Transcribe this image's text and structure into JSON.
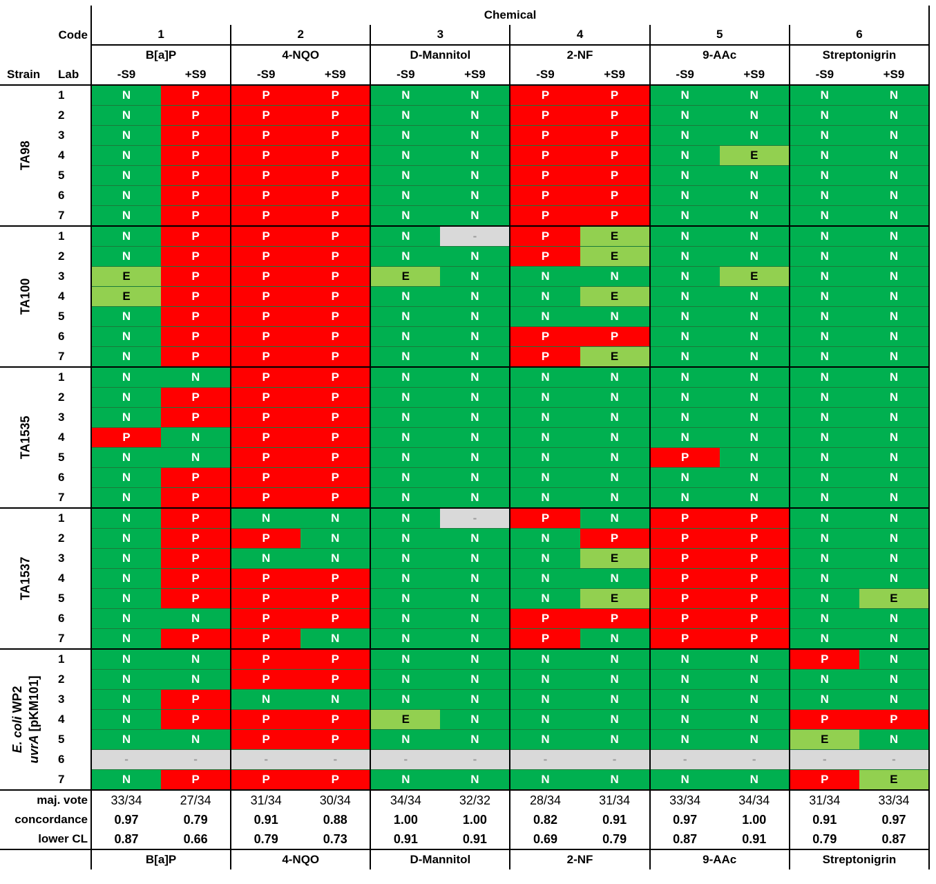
{
  "header": {
    "chemical_label": "Chemical",
    "code_label": "Code",
    "strain_label": "Strain",
    "lab_label": "Lab",
    "codes": [
      "1",
      "2",
      "3",
      "4",
      "5",
      "6"
    ],
    "chemicals": [
      "B[a]P",
      "4-NQO",
      "D-Mannitol",
      "2-NF",
      "9-AAc",
      "Streptonigrin"
    ],
    "s9": [
      "-S9",
      "+S9"
    ]
  },
  "strains": [
    {
      "name": "TA98",
      "rows": [
        {
          "lab": "1",
          "cells": [
            "N",
            "P",
            "P",
            "P",
            "N",
            "N",
            "P",
            "P",
            "N",
            "N",
            "N",
            "N"
          ]
        },
        {
          "lab": "2",
          "cells": [
            "N",
            "P",
            "P",
            "P",
            "N",
            "N",
            "P",
            "P",
            "N",
            "N",
            "N",
            "N"
          ]
        },
        {
          "lab": "3",
          "cells": [
            "N",
            "P",
            "P",
            "P",
            "N",
            "N",
            "P",
            "P",
            "N",
            "N",
            "N",
            "N"
          ]
        },
        {
          "lab": "4",
          "cells": [
            "N",
            "P",
            "P",
            "P",
            "N",
            "N",
            "P",
            "P",
            "N",
            "E",
            "N",
            "N"
          ]
        },
        {
          "lab": "5",
          "cells": [
            "N",
            "P",
            "P",
            "P",
            "N",
            "N",
            "P",
            "P",
            "N",
            "N",
            "N",
            "N"
          ]
        },
        {
          "lab": "6",
          "cells": [
            "N",
            "P",
            "P",
            "P",
            "N",
            "N",
            "P",
            "P",
            "N",
            "N",
            "N",
            "N"
          ]
        },
        {
          "lab": "7",
          "cells": [
            "N",
            "P",
            "P",
            "P",
            "N",
            "N",
            "P",
            "P",
            "N",
            "N",
            "N",
            "N"
          ]
        }
      ]
    },
    {
      "name": "TA100",
      "rows": [
        {
          "lab": "1",
          "cells": [
            "N",
            "P",
            "P",
            "P",
            "N",
            "-",
            "P",
            "E",
            "N",
            "N",
            "N",
            "N"
          ]
        },
        {
          "lab": "2",
          "cells": [
            "N",
            "P",
            "P",
            "P",
            "N",
            "N",
            "P",
            "E",
            "N",
            "N",
            "N",
            "N"
          ]
        },
        {
          "lab": "3",
          "cells": [
            "E",
            "P",
            "P",
            "P",
            "E",
            "N",
            "N",
            "N",
            "N",
            "E",
            "N",
            "N"
          ]
        },
        {
          "lab": "4",
          "cells": [
            "E",
            "P",
            "P",
            "P",
            "N",
            "N",
            "N",
            "E",
            "N",
            "N",
            "N",
            "N"
          ]
        },
        {
          "lab": "5",
          "cells": [
            "N",
            "P",
            "P",
            "P",
            "N",
            "N",
            "N",
            "N",
            "N",
            "N",
            "N",
            "N"
          ]
        },
        {
          "lab": "6",
          "cells": [
            "N",
            "P",
            "P",
            "P",
            "N",
            "N",
            "P",
            "P",
            "N",
            "N",
            "N",
            "N"
          ]
        },
        {
          "lab": "7",
          "cells": [
            "N",
            "P",
            "P",
            "P",
            "N",
            "N",
            "P",
            "E",
            "N",
            "N",
            "N",
            "N"
          ]
        }
      ]
    },
    {
      "name": "TA1535",
      "rows": [
        {
          "lab": "1",
          "cells": [
            "N",
            "N",
            "P",
            "P",
            "N",
            "N",
            "N",
            "N",
            "N",
            "N",
            "N",
            "N"
          ]
        },
        {
          "lab": "2",
          "cells": [
            "N",
            "P",
            "P",
            "P",
            "N",
            "N",
            "N",
            "N",
            "N",
            "N",
            "N",
            "N"
          ]
        },
        {
          "lab": "3",
          "cells": [
            "N",
            "P",
            "P",
            "P",
            "N",
            "N",
            "N",
            "N",
            "N",
            "N",
            "N",
            "N"
          ]
        },
        {
          "lab": "4",
          "cells": [
            "P",
            "N",
            "P",
            "P",
            "N",
            "N",
            "N",
            "N",
            "N",
            "N",
            "N",
            "N"
          ]
        },
        {
          "lab": "5",
          "cells": [
            "N",
            "N",
            "P",
            "P",
            "N",
            "N",
            "N",
            "N",
            "P",
            "N",
            "N",
            "N"
          ]
        },
        {
          "lab": "6",
          "cells": [
            "N",
            "P",
            "P",
            "P",
            "N",
            "N",
            "N",
            "N",
            "N",
            "N",
            "N",
            "N"
          ]
        },
        {
          "lab": "7",
          "cells": [
            "N",
            "P",
            "P",
            "P",
            "N",
            "N",
            "N",
            "N",
            "N",
            "N",
            "N",
            "N"
          ]
        }
      ]
    },
    {
      "name": "TA1537",
      "rows": [
        {
          "lab": "1",
          "cells": [
            "N",
            "P",
            "N",
            "N",
            "N",
            "-",
            "P",
            "N",
            "P",
            "P",
            "N",
            "N"
          ]
        },
        {
          "lab": "2",
          "cells": [
            "N",
            "P",
            "P",
            "N",
            "N",
            "N",
            "N",
            "P",
            "P",
            "P",
            "N",
            "N"
          ]
        },
        {
          "lab": "3",
          "cells": [
            "N",
            "P",
            "N",
            "N",
            "N",
            "N",
            "N",
            "E",
            "P",
            "P",
            "N",
            "N"
          ]
        },
        {
          "lab": "4",
          "cells": [
            "N",
            "P",
            "P",
            "P",
            "N",
            "N",
            "N",
            "N",
            "P",
            "P",
            "N",
            "N"
          ]
        },
        {
          "lab": "5",
          "cells": [
            "N",
            "P",
            "P",
            "P",
            "N",
            "N",
            "N",
            "E",
            "P",
            "P",
            "N",
            "E"
          ]
        },
        {
          "lab": "6",
          "cells": [
            "N",
            "N",
            "P",
            "P",
            "N",
            "N",
            "P",
            "P",
            "P",
            "P",
            "N",
            "N"
          ]
        },
        {
          "lab": "7",
          "cells": [
            "N",
            "P",
            "P",
            "N",
            "N",
            "N",
            "P",
            "N",
            "P",
            "P",
            "N",
            "N"
          ]
        }
      ]
    },
    {
      "name_line1": "E. coli  WP2",
      "name_line2": "uvrA [pKM101]",
      "rows": [
        {
          "lab": "1",
          "cells": [
            "N",
            "N",
            "P",
            "P",
            "N",
            "N",
            "N",
            "N",
            "N",
            "N",
            "P",
            "N"
          ]
        },
        {
          "lab": "2",
          "cells": [
            "N",
            "N",
            "P",
            "P",
            "N",
            "N",
            "N",
            "N",
            "N",
            "N",
            "N",
            "N"
          ]
        },
        {
          "lab": "3",
          "cells": [
            "N",
            "P",
            "N",
            "N",
            "N",
            "N",
            "N",
            "N",
            "N",
            "N",
            "N",
            "N"
          ]
        },
        {
          "lab": "4",
          "cells": [
            "N",
            "P",
            "P",
            "P",
            "E",
            "N",
            "N",
            "N",
            "N",
            "N",
            "P",
            "P"
          ]
        },
        {
          "lab": "5",
          "cells": [
            "N",
            "N",
            "P",
            "P",
            "N",
            "N",
            "N",
            "N",
            "N",
            "N",
            "E",
            "N"
          ]
        },
        {
          "lab": "6",
          "cells": [
            "-",
            "-",
            "-",
            "-",
            "-",
            "-",
            "-",
            "-",
            "-",
            "-",
            "-",
            "-"
          ]
        },
        {
          "lab": "7",
          "cells": [
            "N",
            "P",
            "P",
            "P",
            "N",
            "N",
            "N",
            "N",
            "N",
            "N",
            "P",
            "E"
          ]
        }
      ]
    }
  ],
  "stats": {
    "maj_vote_label": "maj. vote",
    "maj_vote": [
      "33/34",
      "27/34",
      "31/34",
      "30/34",
      "34/34",
      "32/32",
      "28/34",
      "31/34",
      "33/34",
      "34/34",
      "31/34",
      "33/34"
    ],
    "concordance_label": "concordance",
    "concordance": [
      "0.97",
      "0.79",
      "0.91",
      "0.88",
      "1.00",
      "1.00",
      "0.82",
      "0.91",
      "0.97",
      "1.00",
      "0.91",
      "0.97"
    ],
    "lower_cl_label": "lower CL",
    "lower_cl": [
      "0.87",
      "0.66",
      "0.79",
      "0.73",
      "0.91",
      "0.91",
      "0.69",
      "0.79",
      "0.87",
      "0.91",
      "0.79",
      "0.87"
    ]
  },
  "colors": {
    "N": "#00b050",
    "P": "#ff0000",
    "E": "#92d050",
    "missing": "#d9d9d9"
  }
}
